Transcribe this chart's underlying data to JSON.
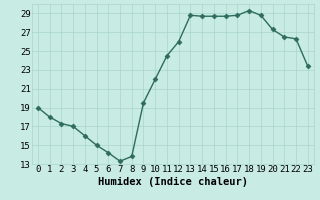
{
  "x": [
    0,
    1,
    2,
    3,
    4,
    5,
    6,
    7,
    8,
    9,
    10,
    11,
    12,
    13,
    14,
    15,
    16,
    17,
    18,
    19,
    20,
    21,
    22,
    23
  ],
  "y": [
    19,
    18,
    17.3,
    17,
    16,
    15,
    14.2,
    13.3,
    13.8,
    19.5,
    22,
    24.5,
    26,
    28.8,
    28.7,
    28.7,
    28.7,
    28.8,
    29.3,
    28.8,
    27.3,
    26.5,
    26.3,
    23.4
  ],
  "line_color": "#2e6b5e",
  "marker": "D",
  "marker_size": 2.5,
  "bg_color": "#c8ece4",
  "grid_color": "#a8d4cc",
  "xlabel": "Humidex (Indice chaleur)",
  "xlim": [
    -0.5,
    23.5
  ],
  "ylim": [
    13,
    30
  ],
  "yticks": [
    13,
    15,
    17,
    19,
    21,
    23,
    25,
    27,
    29
  ],
  "xticks": [
    0,
    1,
    2,
    3,
    4,
    5,
    6,
    7,
    8,
    9,
    10,
    11,
    12,
    13,
    14,
    15,
    16,
    17,
    18,
    19,
    20,
    21,
    22,
    23
  ],
  "tick_label_fontsize": 6.5,
  "xlabel_fontsize": 7.5,
  "line_width": 1.0
}
